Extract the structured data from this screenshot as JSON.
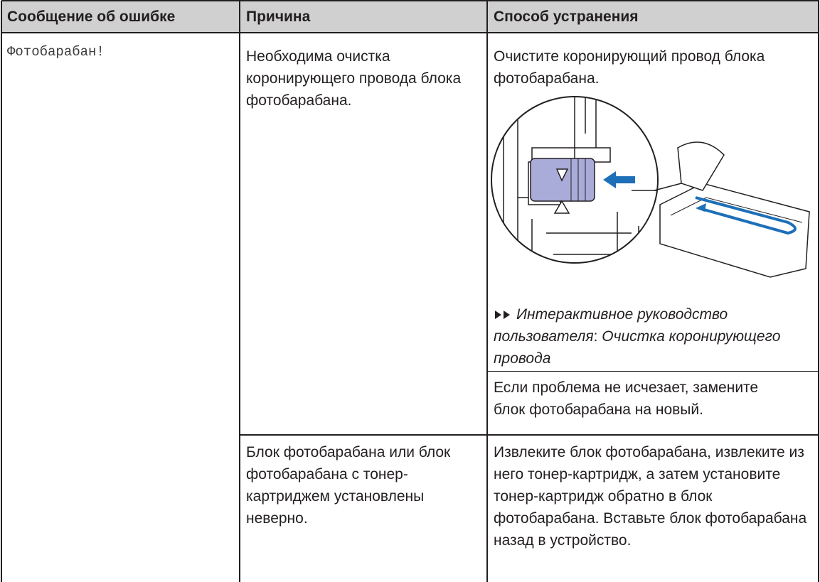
{
  "table": {
    "headers": [
      "Сообщение об ошибке",
      "Причина",
      "Способ устранения"
    ],
    "message": "Фотобарабан!",
    "rows": [
      {
        "cause": "Необходима очистка коронирующего провода блока фотобарабана.",
        "solution": "Очистите коронирующий провод блока фотобарабана.",
        "reference": {
          "guide": "Интерактивное руководство пользователя",
          "separator": ":",
          "topic": "Очистка коронирующего провода"
        },
        "note": "Если проблема не исчезает, замените блок фотобарабана на новый."
      },
      {
        "cause": "Блок фотобарабана или блок фотобарабана с тонер-картриджем установлены неверно.",
        "solution": "Извлеките блок фотобарабана, извлеките из него тонер-картридж, а затем установите тонер-картридж обратно в блок фотобарабана. Вставьте блок фотобарабана назад в устройство."
      }
    ]
  }
}
